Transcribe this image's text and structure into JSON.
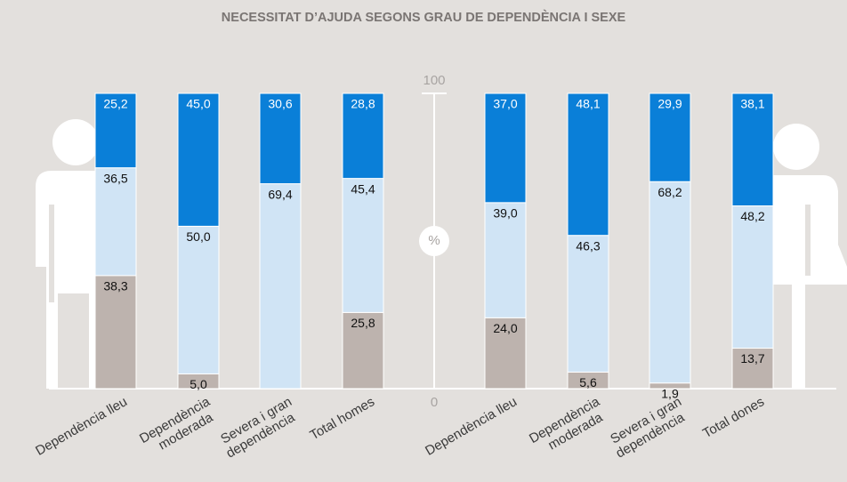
{
  "chart_data": {
    "type": "stacked-bar",
    "title": "NECESSITAT D’AJUDA SEGONS GRAU DE DEPENDÈNCIA I SEXE",
    "categories": [
      "Dependència lleu",
      "Dependència moderada",
      "Severa i gran dependència",
      "Total homes",
      "Dependència lleu",
      "Dependència moderada",
      "Severa i gran dependència",
      "Total dones"
    ],
    "series": [
      {
        "color": "#bdb3ae",
        "values": [
          38.3,
          5.0,
          null,
          25.8,
          24.0,
          5.6,
          1.9,
          13.7
        ],
        "value_labels": [
          "38,3",
          "5,0",
          null,
          "25,8",
          "24,0",
          "5,6",
          "1,9",
          "13,7"
        ]
      },
      {
        "color": "#d0e4f5",
        "values": [
          36.5,
          50.0,
          69.4,
          45.4,
          39.0,
          46.3,
          68.2,
          48.2
        ],
        "value_labels": [
          "36,5",
          "50,0",
          "69,4",
          "45,4",
          "39,0",
          "46,3",
          "68,2",
          "48,2"
        ]
      },
      {
        "color": "#0a7fd8",
        "values": [
          25.2,
          45.0,
          30.6,
          28.8,
          37.0,
          48.1,
          29.9,
          38.1
        ],
        "value_labels": [
          "25,2",
          "45,0",
          "30,6",
          "28,8",
          "37,0",
          "48,1",
          "29,9",
          "38,1"
        ]
      }
    ],
    "ylim": [
      0,
      100
    ],
    "yticks": [
      0,
      100
    ],
    "y_unit": "%"
  }
}
